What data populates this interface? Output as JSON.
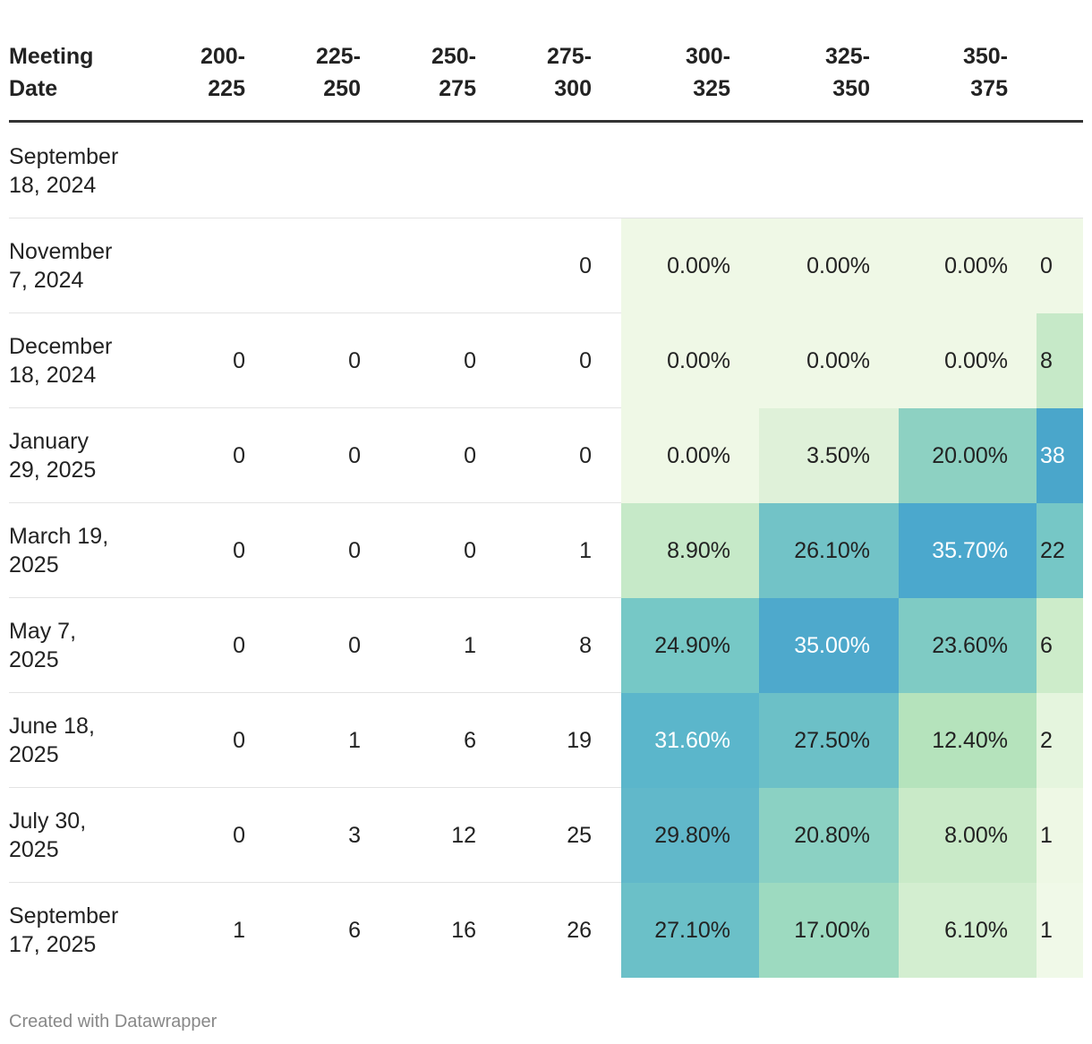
{
  "table": {
    "header": [
      "Meeting\nDate",
      "200-\n225",
      "225-\n250",
      "250-\n275",
      "275-\n300",
      "300-\n325",
      "325-\n350",
      "350-\n375"
    ],
    "rows": [
      {
        "date": "September\n18, 2024",
        "cells": [
          null,
          null,
          null,
          null,
          null,
          null,
          null,
          null
        ]
      },
      {
        "date": "November\n7, 2024",
        "cells": [
          null,
          null,
          null,
          "0",
          {
            "text": "0.00%",
            "fill": "#eff8e6",
            "ink": "#222222"
          },
          {
            "text": "0.00%",
            "fill": "#eff8e6",
            "ink": "#222222"
          },
          {
            "text": "0.00%",
            "fill": "#eff8e6",
            "ink": "#222222"
          },
          {
            "text": "0",
            "fill": "#eff8e6",
            "ink": "#222222"
          }
        ]
      },
      {
        "date": "December\n18, 2024",
        "cells": [
          "0",
          "0",
          "0",
          "0",
          {
            "text": "0.00%",
            "fill": "#eff8e6",
            "ink": "#222222"
          },
          {
            "text": "0.00%",
            "fill": "#eff8e6",
            "ink": "#222222"
          },
          {
            "text": "0.00%",
            "fill": "#eff8e6",
            "ink": "#222222"
          },
          {
            "text": "8",
            "fill": "#c6e9c8",
            "ink": "#222222"
          }
        ]
      },
      {
        "date": "January\n29, 2025",
        "cells": [
          "0",
          "0",
          "0",
          "0",
          {
            "text": "0.00%",
            "fill": "#eff8e6",
            "ink": "#222222"
          },
          {
            "text": "3.50%",
            "fill": "#dff1d9",
            "ink": "#222222"
          },
          {
            "text": "20.00%",
            "fill": "#8dd1c2",
            "ink": "#222222"
          },
          {
            "text": "38",
            "fill": "#4aa6cb",
            "ink": "#ffffff"
          }
        ]
      },
      {
        "date": "March 19,\n2025",
        "cells": [
          "0",
          "0",
          "0",
          "1",
          {
            "text": "8.90%",
            "fill": "#c6e9c8",
            "ink": "#222222"
          },
          {
            "text": "26.10%",
            "fill": "#72c3c7",
            "ink": "#222222"
          },
          {
            "text": "35.70%",
            "fill": "#4ba8cd",
            "ink": "#ffffff"
          },
          {
            "text": "22",
            "fill": "#76c7c6",
            "ink": "#222222"
          }
        ]
      },
      {
        "date": "May 7,\n2025",
        "cells": [
          "0",
          "0",
          "1",
          "8",
          {
            "text": "24.90%",
            "fill": "#76c8c6",
            "ink": "#222222"
          },
          {
            "text": "35.00%",
            "fill": "#4ea9cc",
            "ink": "#ffffff"
          },
          {
            "text": "23.60%",
            "fill": "#7fcbc4",
            "ink": "#222222"
          },
          {
            "text": "6",
            "fill": "#cdecca",
            "ink": "#222222"
          }
        ]
      },
      {
        "date": "June 18,\n2025",
        "cells": [
          "0",
          "1",
          "6",
          "19",
          {
            "text": "31.60%",
            "fill": "#5bb6cb",
            "ink": "#ffffff"
          },
          {
            "text": "27.50%",
            "fill": "#6cc0c7",
            "ink": "#222222"
          },
          {
            "text": "12.40%",
            "fill": "#b5e3bc",
            "ink": "#222222"
          },
          {
            "text": "2",
            "fill": "#e5f5de",
            "ink": "#222222"
          }
        ]
      },
      {
        "date": "July 30,\n2025",
        "cells": [
          "0",
          "3",
          "12",
          "25",
          {
            "text": "29.80%",
            "fill": "#61b8ca",
            "ink": "#222222"
          },
          {
            "text": "20.80%",
            "fill": "#8bd1c3",
            "ink": "#222222"
          },
          {
            "text": "8.00%",
            "fill": "#c9eac8",
            "ink": "#222222"
          },
          {
            "text": "1",
            "fill": "#eef8e5",
            "ink": "#222222"
          }
        ]
      },
      {
        "date": "September\n17, 2025",
        "cells": [
          "1",
          "6",
          "16",
          "26",
          {
            "text": "27.10%",
            "fill": "#6bc0c8",
            "ink": "#222222"
          },
          {
            "text": "17.00%",
            "fill": "#9ddac0",
            "ink": "#222222"
          },
          {
            "text": "6.10%",
            "fill": "#d3eed0",
            "ink": "#222222"
          },
          {
            "text": "1",
            "fill": "#f0f9e8",
            "ink": "#222222"
          }
        ]
      }
    ],
    "footer": "Created with Datawrapper"
  }
}
